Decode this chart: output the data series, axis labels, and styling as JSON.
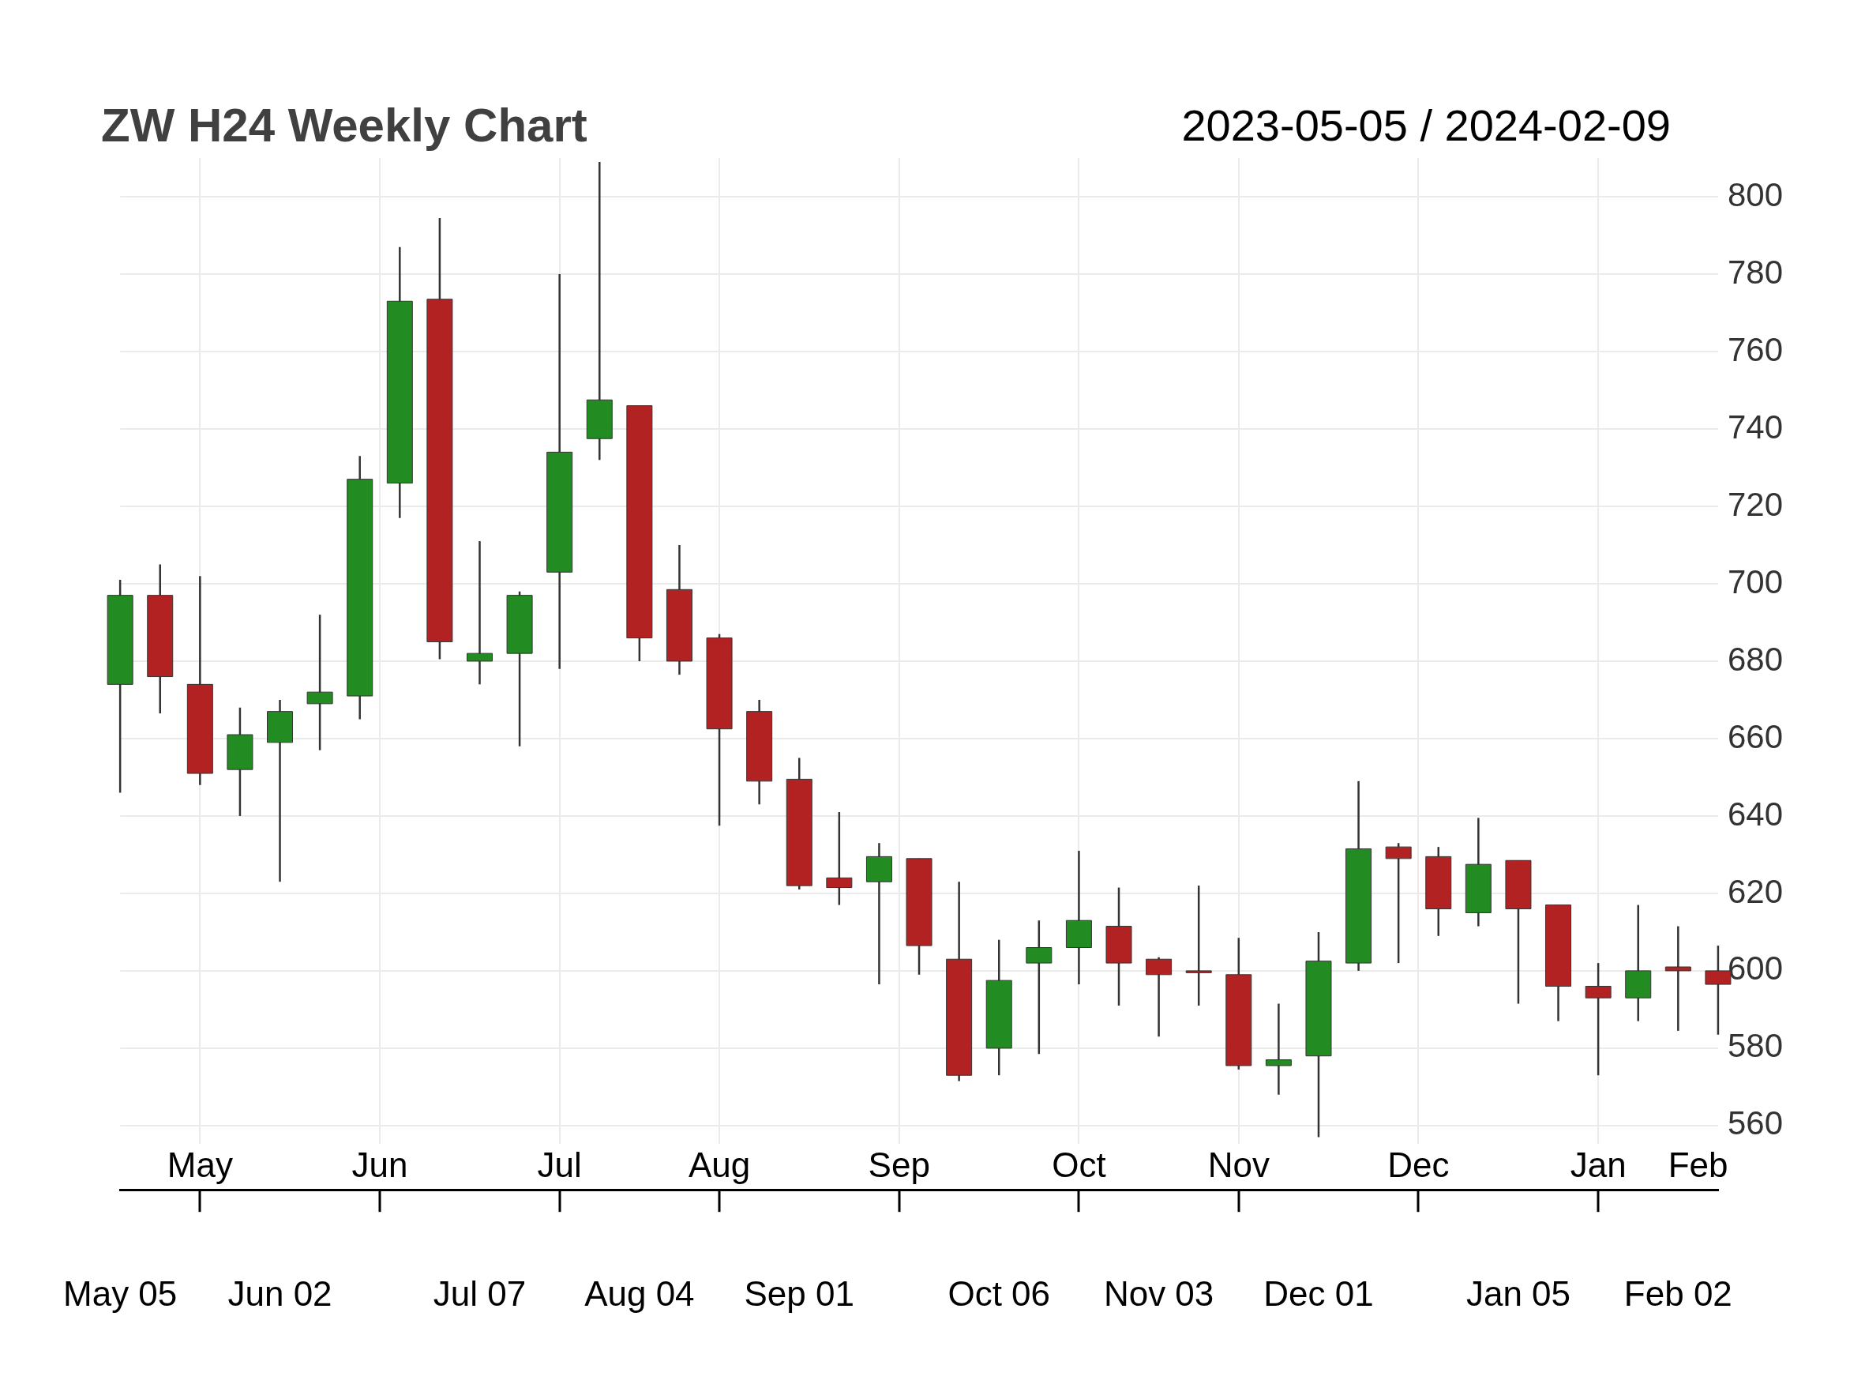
{
  "chart_data": {
    "type": "candlestick",
    "title": "ZW H24 Weekly Chart",
    "subtitle": "2023-05-05 / 2024-02-09",
    "x": [
      "2023-05-05",
      "2023-05-12",
      "2023-05-19",
      "2023-05-26",
      "2023-06-02",
      "2023-06-09",
      "2023-06-16",
      "2023-06-23",
      "2023-06-30",
      "2023-07-07",
      "2023-07-14",
      "2023-07-21",
      "2023-07-28",
      "2023-08-04",
      "2023-08-11",
      "2023-08-18",
      "2023-08-25",
      "2023-09-01",
      "2023-09-08",
      "2023-09-15",
      "2023-09-22",
      "2023-09-29",
      "2023-10-06",
      "2023-10-13",
      "2023-10-20",
      "2023-10-27",
      "2023-11-03",
      "2023-11-10",
      "2023-11-17",
      "2023-11-24",
      "2023-12-01",
      "2023-12-08",
      "2023-12-15",
      "2023-12-22",
      "2023-12-29",
      "2024-01-05",
      "2024-01-12",
      "2024-01-19",
      "2024-01-26",
      "2024-02-02",
      "2024-02-09"
    ],
    "ohlc": [
      [
        674,
        701,
        646,
        697
      ],
      [
        697,
        705,
        666.5,
        676
      ],
      [
        674,
        702,
        648,
        651
      ],
      [
        652,
        668,
        640,
        661
      ],
      [
        659,
        670,
        623,
        667
      ],
      [
        669,
        692,
        657,
        672
      ],
      [
        671,
        733,
        665,
        727
      ],
      [
        726,
        787,
        717,
        773
      ],
      [
        773.5,
        794.5,
        680.5,
        685
      ],
      [
        680,
        711,
        674,
        682
      ],
      [
        682,
        698,
        658,
        697
      ],
      [
        703,
        780,
        678,
        734
      ],
      [
        737.5,
        809,
        732,
        747.5
      ],
      [
        746,
        746,
        680,
        686
      ],
      [
        698.5,
        710,
        676.5,
        680
      ],
      [
        686,
        687,
        637.5,
        662.5
      ],
      [
        667,
        670,
        643,
        649
      ],
      [
        649.5,
        655,
        621,
        622
      ],
      [
        624,
        641,
        617,
        621.5
      ],
      [
        623,
        633,
        596.5,
        629.5
      ],
      [
        629,
        629,
        599,
        606.5
      ],
      [
        603,
        623,
        571.5,
        573
      ],
      [
        580,
        608,
        573,
        597.5
      ],
      [
        602,
        613,
        578.5,
        606
      ],
      [
        606,
        631,
        596.5,
        613
      ],
      [
        611.5,
        621.5,
        591,
        602
      ],
      [
        603,
        603.5,
        583,
        599
      ],
      [
        600,
        622,
        591,
        599.5
      ],
      [
        599,
        608.5,
        574.5,
        575.5
      ],
      [
        575.5,
        591.5,
        568,
        577
      ],
      [
        578,
        610,
        557,
        602.5
      ],
      [
        602,
        649,
        600,
        631.5
      ],
      [
        632,
        633,
        602,
        629
      ],
      [
        629.5,
        632,
        609,
        616
      ],
      [
        615,
        639.5,
        611.5,
        627.5
      ],
      [
        628.5,
        628.5,
        591.5,
        616
      ],
      [
        617,
        617,
        587,
        596
      ],
      [
        596,
        602,
        573,
        593
      ],
      [
        593,
        617,
        587,
        600
      ],
      [
        601,
        611.5,
        584.5,
        600
      ],
      [
        600,
        606.5,
        583.5,
        596.5
      ]
    ],
    "colors": [
      "#228b22",
      "#b22222",
      "#b22222",
      "#228b22",
      "#228b22",
      "#228b22",
      "#228b22",
      "#228b22",
      "#b22222",
      "#228b22",
      "#228b22",
      "#228b22",
      "#228b22",
      "#b22222",
      "#b22222",
      "#b22222",
      "#b22222",
      "#b22222",
      "#b22222",
      "#228b22",
      "#b22222",
      "#b22222",
      "#228b22",
      "#228b22",
      "#228b22",
      "#b22222",
      "#b22222",
      "#b22222",
      "#b22222",
      "#228b22",
      "#228b22",
      "#228b22",
      "#b22222",
      "#b22222",
      "#228b22",
      "#b22222",
      "#b22222",
      "#b22222",
      "#228b22",
      "#b22222",
      "#b22222"
    ],
    "xlim": [
      "2023-05-05",
      "2024-02-09"
    ],
    "xticks": [
      {
        "value": "2023-05-05",
        "label": "May 05"
      },
      {
        "value": "2023-06-02",
        "label": "Jun 02"
      },
      {
        "value": "2023-07-07",
        "label": "Jul 07"
      },
      {
        "value": "2023-08-04",
        "label": "Aug 04"
      },
      {
        "value": "2023-09-01",
        "label": "Sep 01"
      },
      {
        "value": "2023-10-06",
        "label": "Oct 06"
      },
      {
        "value": "2023-11-03",
        "label": "Nov 03"
      },
      {
        "value": "2023-12-01",
        "label": "Dec 01"
      },
      {
        "value": "2024-01-05",
        "label": "Jan 05"
      },
      {
        "value": "2024-02-02",
        "label": "Feb 02"
      }
    ],
    "x2lim": [
      "2023-05-05",
      "2024-02-09"
    ],
    "x2ticks": [
      {
        "value": "2023-05-19",
        "label": "May"
      },
      {
        "value": "2023-06-19T12:00",
        "label": "Jun"
      },
      {
        "value": "2023-07-21",
        "label": "Jul"
      },
      {
        "value": "2023-08-18",
        "label": "Aug"
      },
      {
        "value": "2023-09-18T12:00",
        "label": "Sep"
      },
      {
        "value": "2023-10-20",
        "label": "Oct"
      },
      {
        "value": "2023-11-17",
        "label": "Nov"
      },
      {
        "value": "2023-12-18T12:00",
        "label": "Dec"
      },
      {
        "value": "2024-01-19",
        "label": "Jan"
      },
      {
        "value": "2024-02-05T12:00",
        "label": "Feb"
      }
    ],
    "ylim": [
      555,
      810
    ],
    "yticks": [
      560,
      580,
      600,
      620,
      640,
      660,
      680,
      700,
      720,
      740,
      760,
      780,
      800
    ],
    "grid": true
  }
}
